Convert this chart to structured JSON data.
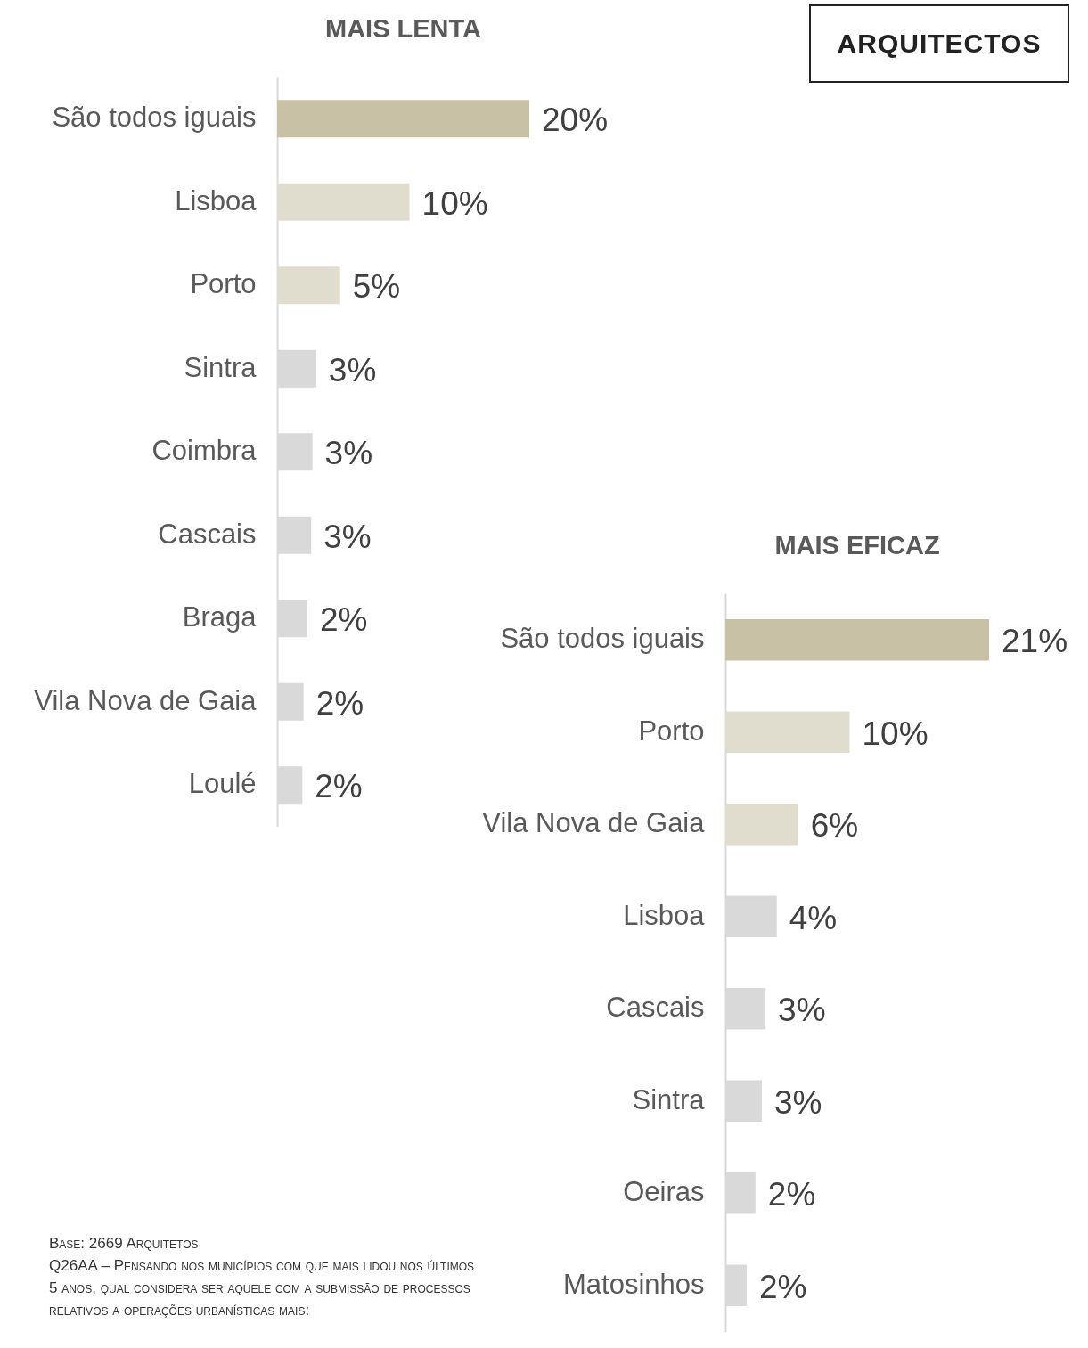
{
  "chart_data": [
    {
      "type": "bar",
      "title": "MAIS LENTA",
      "orientation": "horizontal",
      "tick_labels": "y",
      "categories": [
        "São todos iguais",
        "Lisboa",
        "Porto",
        "Sintra",
        "Coimbra",
        "Cascais",
        "Braga",
        "Vila Nova de Gaia",
        "Loulé"
      ],
      "values": [
        20,
        10.5,
        5,
        3.1,
        2.8,
        2.7,
        2.4,
        2.1,
        2
      ],
      "value_labels": [
        "20%",
        "10%",
        "5%",
        "3%",
        "3%",
        "3%",
        "2%",
        "2%",
        "2%"
      ],
      "colors": [
        "#c8c1a5",
        "#e0ddcf",
        "#e0ddcf",
        "#d9d9d9",
        "#d9d9d9",
        "#d9d9d9",
        "#d9d9d9",
        "#d9d9d9",
        "#d9d9d9"
      ],
      "annotations": [
        "ARQUITECTOS"
      ]
    },
    {
      "type": "bar",
      "title": "MAIS EFICAZ",
      "orientation": "horizontal",
      "tick_labels": "y",
      "categories": [
        "São todos iguais",
        "Porto",
        "Vila Nova de Gaia",
        "Lisboa",
        "Cascais",
        "Sintra",
        "Oeiras",
        "Matosinhos"
      ],
      "values": [
        21,
        9.9,
        5.8,
        4.1,
        3.2,
        2.9,
        2.4,
        1.7
      ],
      "value_labels": [
        "21%",
        "10%",
        "6%",
        "4%",
        "3%",
        "3%",
        "2%",
        "2%"
      ],
      "colors": [
        "#c8c1a5",
        "#e0ddcf",
        "#e0ddcf",
        "#d9d9d9",
        "#d9d9d9",
        "#d9d9d9",
        "#d9d9d9",
        "#d9d9d9"
      ],
      "annotations": [
        "Base: 2669 Arquitetos",
        "Q26AA – Pensando nos municípios com que mais lidou nos últimos 5 anos, qual considera ser aquele com a submissão de processos relativos a operações urbanísticas mais:"
      ]
    }
  ]
}
